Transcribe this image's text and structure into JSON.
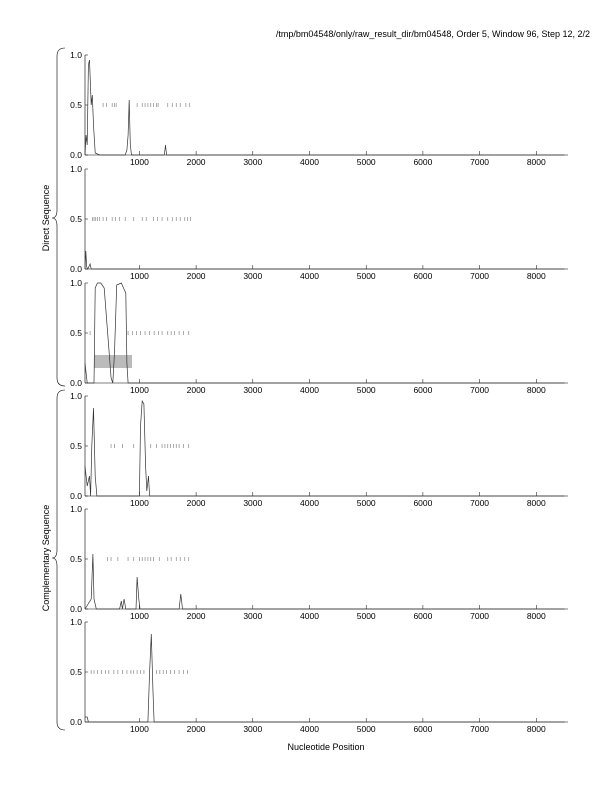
{
  "chart_data": {
    "type": "line",
    "title": "/tmp/bm04548/only/raw_result_dir/bm04548, Order 5, Window 96, Step 12, 2/2",
    "xlabel": "Nucleotide Position",
    "group_labels": [
      "Direct Sequence",
      "Complementary Sequence"
    ],
    "xlim": [
      0,
      8500
    ],
    "ylim": [
      0,
      1
    ],
    "xticks": [
      "1000",
      "2000",
      "3000",
      "4000",
      "5000",
      "6000",
      "7000",
      "8000"
    ],
    "yticks": [
      "0.0",
      "0.5",
      "1.0"
    ],
    "panels": [
      {
        "group": "Direct Sequence",
        "points": [
          [
            40,
            0
          ],
          [
            60,
            0.2
          ],
          [
            80,
            0.1
          ],
          [
            100,
            0.9
          ],
          [
            120,
            0.95
          ],
          [
            150,
            0.5
          ],
          [
            170,
            0.6
          ],
          [
            190,
            0.3
          ],
          [
            220,
            0.02
          ],
          [
            300,
            0
          ],
          [
            750,
            0
          ],
          [
            780,
            0.05
          ],
          [
            800,
            0.2
          ],
          [
            820,
            0.55
          ],
          [
            840,
            0.1
          ],
          [
            860,
            0
          ],
          [
            1440,
            0
          ],
          [
            1460,
            0.1
          ],
          [
            1480,
            0
          ],
          [
            8500,
            0
          ]
        ],
        "ticks_at_half": [
          360,
          420,
          520,
          560,
          590,
          820,
          960,
          1050,
          1100,
          1150,
          1200,
          1250,
          1300,
          1330,
          1500,
          1580,
          1650,
          1720,
          1820,
          1880
        ],
        "band": null
      },
      {
        "group": "Direct Sequence",
        "points": [
          [
            40,
            0
          ],
          [
            55,
            0.18
          ],
          [
            70,
            0.02
          ],
          [
            90,
            0
          ],
          [
            130,
            0.05
          ],
          [
            150,
            0
          ],
          [
            8500,
            0
          ]
        ],
        "ticks_at_half": [
          170,
          200,
          230,
          260,
          300,
          360,
          420,
          520,
          580,
          650,
          750,
          900,
          1050,
          1120,
          1250,
          1320,
          1400,
          1500,
          1580,
          1650,
          1720,
          1800,
          1850,
          1900
        ],
        "band": null
      },
      {
        "group": "Direct Sequence",
        "points": [
          [
            40,
            0.2
          ],
          [
            80,
            0
          ],
          [
            200,
            0
          ],
          [
            220,
            0.95
          ],
          [
            260,
            1
          ],
          [
            320,
            1
          ],
          [
            380,
            0.95
          ],
          [
            500,
            0.05
          ],
          [
            530,
            0
          ],
          [
            560,
            0.3
          ],
          [
            600,
            0.98
          ],
          [
            680,
            1
          ],
          [
            720,
            0.95
          ],
          [
            760,
            0.9
          ],
          [
            780,
            0.2
          ],
          [
            800,
            0
          ],
          [
            8500,
            0
          ]
        ],
        "ticks_at_half": [
          130,
          800,
          880,
          950,
          1020,
          1100,
          1180,
          1260,
          1340,
          1400,
          1500,
          1560,
          1620,
          1700,
          1780,
          1870
        ],
        "band": {
          "x": [
            200,
            870
          ],
          "y": [
            0.15,
            0.28
          ]
        }
      },
      {
        "group": "Complementary Sequence",
        "points": [
          [
            40,
            0.3
          ],
          [
            80,
            0.1
          ],
          [
            120,
            0.2
          ],
          [
            140,
            0
          ],
          [
            160,
            0.5
          ],
          [
            190,
            0.88
          ],
          [
            220,
            0.2
          ],
          [
            250,
            0
          ],
          [
            1000,
            0
          ],
          [
            1020,
            0.7
          ],
          [
            1050,
            0.95
          ],
          [
            1080,
            0.92
          ],
          [
            1110,
            0.3
          ],
          [
            1130,
            0.05
          ],
          [
            1160,
            0.2
          ],
          [
            1180,
            0
          ],
          [
            8500,
            0
          ]
        ],
        "ticks_at_half": [
          500,
          560,
          700,
          900,
          1200,
          1300,
          1400,
          1450,
          1500,
          1550,
          1600,
          1650,
          1700,
          1780,
          1870
        ],
        "band": null
      },
      {
        "group": "Complementary Sequence",
        "points": [
          [
            40,
            0
          ],
          [
            150,
            0.1
          ],
          [
            180,
            0.55
          ],
          [
            200,
            0.1
          ],
          [
            240,
            0
          ],
          [
            650,
            0
          ],
          [
            680,
            0.08
          ],
          [
            700,
            0
          ],
          [
            730,
            0.1
          ],
          [
            760,
            0
          ],
          [
            940,
            0
          ],
          [
            960,
            0.32
          ],
          [
            990,
            0.1
          ],
          [
            1010,
            0
          ],
          [
            1700,
            0
          ],
          [
            1730,
            0.15
          ],
          [
            1760,
            0
          ],
          [
            8500,
            0
          ]
        ],
        "ticks_at_half": [
          440,
          500,
          620,
          800,
          900,
          1000,
          1050,
          1100,
          1150,
          1200,
          1250,
          1350,
          1500,
          1560,
          1650,
          1720,
          1800,
          1870
        ],
        "band": null
      },
      {
        "group": "Complementary Sequence",
        "points": [
          [
            40,
            0.05
          ],
          [
            80,
            0.05
          ],
          [
            100,
            0
          ],
          [
            1150,
            0
          ],
          [
            1180,
            0.5
          ],
          [
            1210,
            0.88
          ],
          [
            1240,
            0.3
          ],
          [
            1260,
            0
          ],
          [
            8500,
            0
          ]
        ],
        "ticks_at_half": [
          150,
          200,
          260,
          330,
          400,
          460,
          550,
          620,
          700,
          780,
          850,
          900,
          960,
          1020,
          1080,
          1300,
          1360,
          1420,
          1480,
          1550,
          1620,
          1700,
          1780,
          1850
        ],
        "band": null
      }
    ]
  }
}
